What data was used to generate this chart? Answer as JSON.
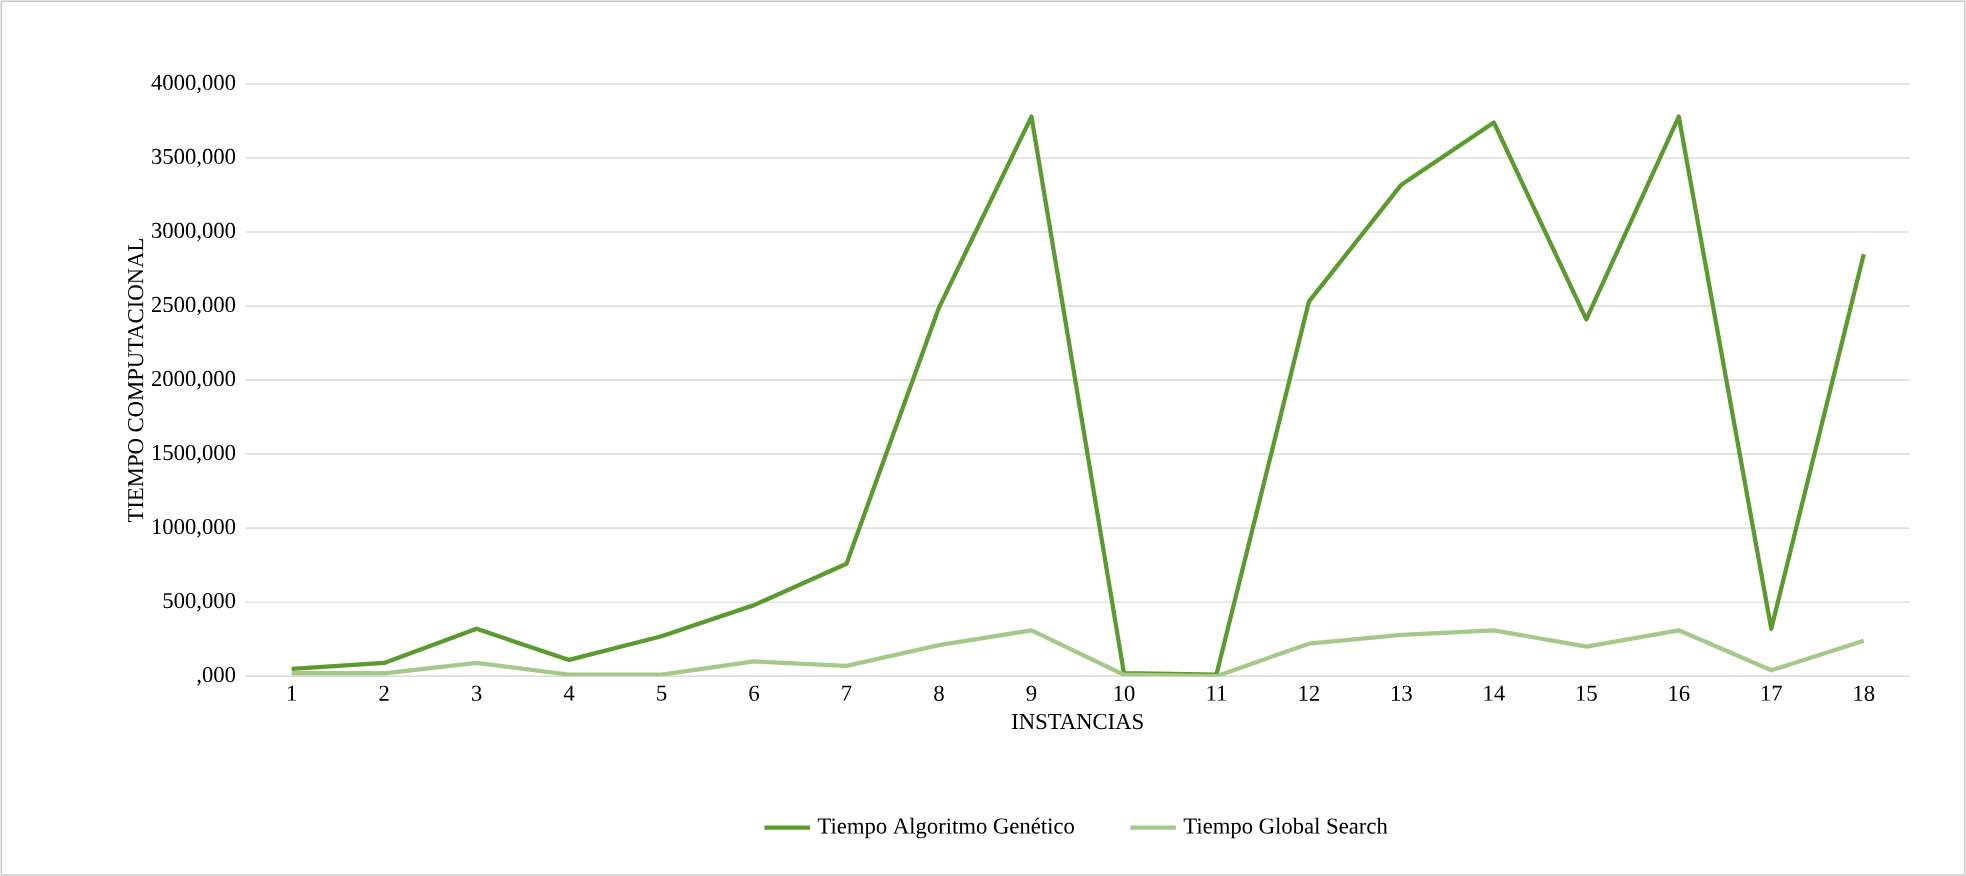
{
  "chart_data": {
    "type": "line",
    "xlabel": "INSTANCIAS",
    "ylabel": "TIEMPO COMPUTACIONAL",
    "categories": [
      "1",
      "2",
      "3",
      "4",
      "5",
      "6",
      "7",
      "8",
      "9",
      "10",
      "11",
      "12",
      "13",
      "14",
      "15",
      "16",
      "17",
      "18"
    ],
    "series": [
      {
        "name": "Tiempo Algoritmo Genético",
        "color": "#5b9a2f",
        "values": [
          50000,
          90000,
          320000,
          110000,
          270000,
          480000,
          760000,
          2490000,
          3780000,
          20000,
          10000,
          2530000,
          3320000,
          3740000,
          2410000,
          3780000,
          320000,
          2850000
        ]
      },
      {
        "name": "Tiempo Global Search",
        "color": "#a6c98a",
        "values": [
          20000,
          20000,
          90000,
          10000,
          10000,
          100000,
          70000,
          210000,
          310000,
          10000,
          0,
          220000,
          280000,
          310000,
          200000,
          310000,
          40000,
          240000
        ]
      }
    ],
    "ylim": [
      0,
      4000000
    ],
    "yticks": [
      {
        "value": 0,
        "label": ",000"
      },
      {
        "value": 500000,
        "label": "500,000"
      },
      {
        "value": 1000000,
        "label": "1000,000"
      },
      {
        "value": 1500000,
        "label": "1500,000"
      },
      {
        "value": 2000000,
        "label": "2000,000"
      },
      {
        "value": 2500000,
        "label": "2500,000"
      },
      {
        "value": 3000000,
        "label": "3000,000"
      },
      {
        "value": 3500000,
        "label": "3500,000"
      },
      {
        "value": 4000000,
        "label": "4000,000"
      }
    ],
    "grid": "y",
    "legend": "bottom",
    "marker": "none",
    "line_style": "solid"
  }
}
